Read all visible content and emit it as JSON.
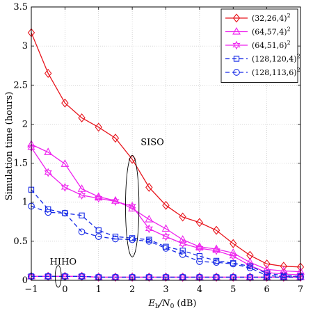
{
  "chart_data": {
    "type": "line",
    "xlabel_main": "E",
    "xlabel_sub1": "b",
    "xlabel_mid": "/N",
    "xlabel_sub2": "0",
    "xlabel_unit": " (dB)",
    "ylabel": "Simulation time (hours)",
    "xlim": [
      -1,
      7
    ],
    "ylim": [
      0,
      3.5
    ],
    "xticks": [
      -1,
      0,
      1,
      2,
      3,
      4,
      5,
      6,
      7
    ],
    "yticks": [
      0,
      0.5,
      1,
      1.5,
      2,
      2.5,
      3,
      3.5
    ],
    "xticklabels": [
      "−1",
      "0",
      "1",
      "2",
      "3",
      "4",
      "5",
      "6",
      "7"
    ],
    "yticklabels": [
      "0",
      "0.5",
      "1",
      "1.5",
      "2",
      "2.5",
      "3",
      "3.5"
    ],
    "grid": true,
    "legend_position": "top-right",
    "annotations": [
      {
        "text": "SISO",
        "x": 2.25,
        "y": 1.73
      },
      {
        "text": "HIHO",
        "x": -0.45,
        "y": 0.2
      }
    ],
    "ellipses": [
      {
        "cx": 2.0,
        "cy": 0.95,
        "rx": 0.2,
        "ry": 0.65
      },
      {
        "cx": -0.2,
        "cy": 0.05,
        "rx": 0.09,
        "ry": 0.14
      }
    ],
    "x": [
      -1,
      -0.5,
      0,
      0.5,
      1,
      1.5,
      2,
      2.5,
      3,
      3.5,
      4,
      4.5,
      5,
      5.5,
      6,
      6.5,
      7
    ],
    "series": [
      {
        "name": "(32,26,4)",
        "exp": "2",
        "color": "#e8141c",
        "dash": false,
        "marker": "diamond",
        "values": [
          3.17,
          2.65,
          2.27,
          2.08,
          1.96,
          1.82,
          1.55,
          1.19,
          0.96,
          0.81,
          0.74,
          0.64,
          0.47,
          0.32,
          0.21,
          0.18,
          0.17
        ]
      },
      {
        "name": "(64,57,4)",
        "exp": "2",
        "color": "#ee22ee",
        "dash": false,
        "marker": "triangle",
        "values": [
          1.74,
          1.64,
          1.49,
          1.17,
          1.07,
          1.02,
          0.92,
          0.78,
          0.66,
          0.52,
          0.43,
          0.4,
          0.35,
          0.23,
          0.14,
          0.12,
          0.11
        ]
      },
      {
        "name": "(64,51,6)",
        "exp": "2",
        "color": "#ee22ee",
        "dash": false,
        "marker": "star",
        "values": [
          1.7,
          1.38,
          1.19,
          1.09,
          1.05,
          1.01,
          0.95,
          0.66,
          0.56,
          0.47,
          0.41,
          0.38,
          0.31,
          0.19,
          0.1,
          0.08,
          0.07
        ]
      },
      {
        "name": "(128,120,4)",
        "exp": "2",
        "color": "#1428e6",
        "dash": true,
        "marker": "square",
        "values": [
          1.16,
          0.91,
          0.86,
          0.83,
          0.64,
          0.56,
          0.54,
          0.52,
          0.43,
          0.38,
          0.31,
          0.25,
          0.22,
          0.18,
          0.09,
          0.06,
          0.05
        ]
      },
      {
        "name": "(128,113,6)",
        "exp": "2",
        "color": "#1428e6",
        "dash": true,
        "marker": "circle",
        "values": [
          0.95,
          0.87,
          0.86,
          0.62,
          0.56,
          0.53,
          0.52,
          0.5,
          0.41,
          0.33,
          0.24,
          0.23,
          0.21,
          0.16,
          0.06,
          0.05,
          0.05
        ]
      },
      {
        "name": "HIHO (32,26,4)",
        "color": "#e8141c",
        "dash": false,
        "marker": "diamond",
        "legend": false,
        "values": [
          0.05,
          0.05,
          0.05,
          0.05,
          0.04,
          0.04,
          0.04,
          0.04,
          0.04,
          0.04,
          0.04,
          0.04,
          0.04,
          0.04,
          0.04,
          0.04,
          0.04
        ]
      },
      {
        "name": "HIHO (64,57,4)",
        "color": "#ee22ee",
        "dash": false,
        "marker": "triangle",
        "legend": false,
        "values": [
          0.05,
          0.05,
          0.05,
          0.05,
          0.04,
          0.04,
          0.04,
          0.04,
          0.04,
          0.04,
          0.04,
          0.04,
          0.04,
          0.04,
          0.04,
          0.04,
          0.04
        ]
      },
      {
        "name": "HIHO (64,51,6)",
        "color": "#ee22ee",
        "dash": false,
        "marker": "star",
        "legend": false,
        "values": [
          0.05,
          0.05,
          0.05,
          0.05,
          0.04,
          0.04,
          0.04,
          0.04,
          0.04,
          0.04,
          0.04,
          0.04,
          0.04,
          0.04,
          0.04,
          0.04,
          0.04
        ]
      },
      {
        "name": "HIHO (128,120,4)",
        "color": "#1428e6",
        "dash": true,
        "marker": "square",
        "legend": false,
        "values": [
          0.05,
          0.05,
          0.05,
          0.05,
          0.04,
          0.04,
          0.04,
          0.04,
          0.04,
          0.04,
          0.04,
          0.04,
          0.04,
          0.04,
          0.04,
          0.04,
          0.04
        ]
      },
      {
        "name": "HIHO (128,113,6)",
        "color": "#1428e6",
        "dash": true,
        "marker": "circle",
        "legend": false,
        "values": [
          0.05,
          0.05,
          0.05,
          0.05,
          0.04,
          0.04,
          0.04,
          0.04,
          0.04,
          0.04,
          0.04,
          0.04,
          0.04,
          0.04,
          0.04,
          0.04,
          0.04
        ]
      }
    ]
  }
}
